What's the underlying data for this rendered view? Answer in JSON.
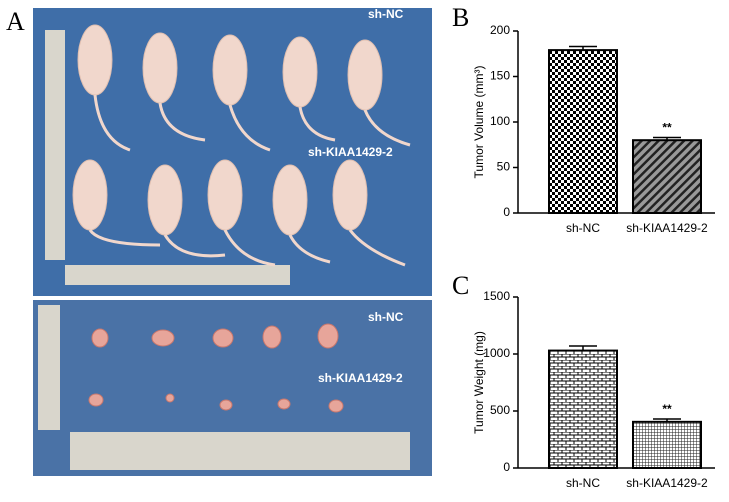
{
  "panels": {
    "a": "A",
    "b": "B",
    "c": "C"
  },
  "photo": {
    "mice_top_label": "sh-NC",
    "mice_bottom_label": "sh-KIAA1429-2",
    "tumor_top_label": "sh-NC",
    "tumor_bottom_label": "sh-KIAA1429-2"
  },
  "chart_data": [
    {
      "type": "bar",
      "y_label": "Tumor Volume (mm³)",
      "categories": [
        "sh-NC",
        "sh-KIAA1429-2"
      ],
      "values": [
        179,
        80
      ],
      "errors": [
        4,
        3
      ],
      "annotation": "**",
      "ylim": [
        0,
        200
      ],
      "yticks": [
        0,
        50,
        100,
        150,
        200
      ]
    },
    {
      "type": "bar",
      "y_label": "Tumor Weight (mg)",
      "categories": [
        "sh-NC",
        "sh-KIAA1429-2"
      ],
      "values": [
        1030,
        405
      ],
      "errors": [
        40,
        25
      ],
      "annotation": "**",
      "ylim": [
        0,
        1500
      ],
      "yticks": [
        0,
        500,
        1000,
        1500
      ]
    }
  ]
}
